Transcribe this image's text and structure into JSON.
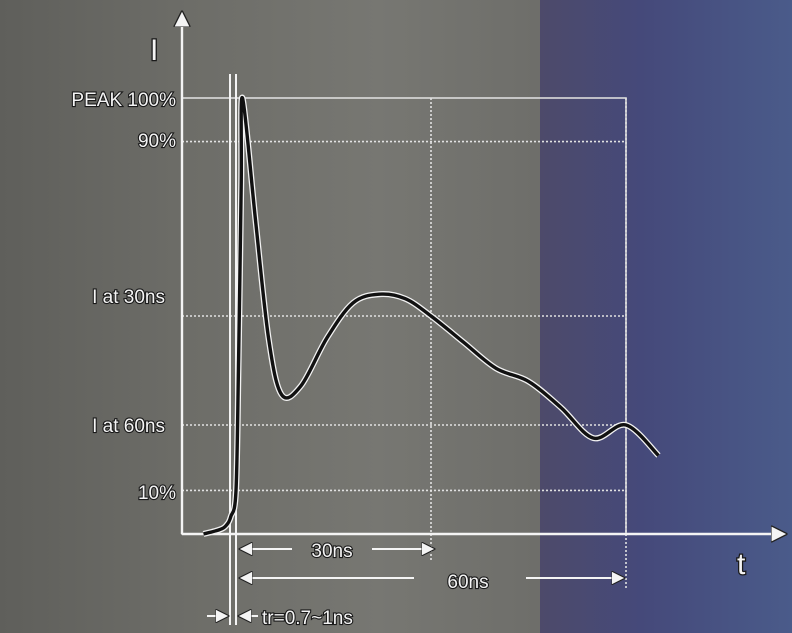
{
  "chart_data": {
    "type": "line",
    "title": "",
    "xlabel": "t",
    "ylabel": "I",
    "y_tick_labels": [
      "PEAK 100%",
      "90%",
      "I at 30ns",
      "I at 60ns",
      "10%"
    ],
    "y_levels": [
      1.0,
      0.9,
      0.5,
      0.25,
      0.1
    ],
    "y_level_names": [
      "peak",
      "ninety",
      "i30",
      "i60",
      "ten"
    ],
    "annotations": {
      "span_30": "30ns",
      "span_60": "60ns",
      "rise_time": "tr=0.7~1ns"
    },
    "series": [
      {
        "x": [
          -5.0,
          -2.5,
          -1.5,
          -0.8,
          0.0,
          0.4,
          0.8,
          1.0,
          3.0,
          5.0,
          7.0,
          10.0,
          14.0,
          18.0,
          22.0,
          26.0,
          30.0,
          35.0,
          40.0,
          45.0,
          50.0,
          55.0,
          60.0,
          65.0
        ],
        "y": [
          0.0,
          0.01,
          0.02,
          0.04,
          0.1,
          0.4,
          0.8,
          1.0,
          0.72,
          0.45,
          0.32,
          0.34,
          0.45,
          0.53,
          0.55,
          0.54,
          0.5,
          0.44,
          0.38,
          0.35,
          0.29,
          0.22,
          0.25,
          0.18
        ]
      }
    ],
    "colors": {
      "curve": "#111111",
      "labels": "#f4f4f4",
      "grid": "#e2e2e2"
    }
  }
}
